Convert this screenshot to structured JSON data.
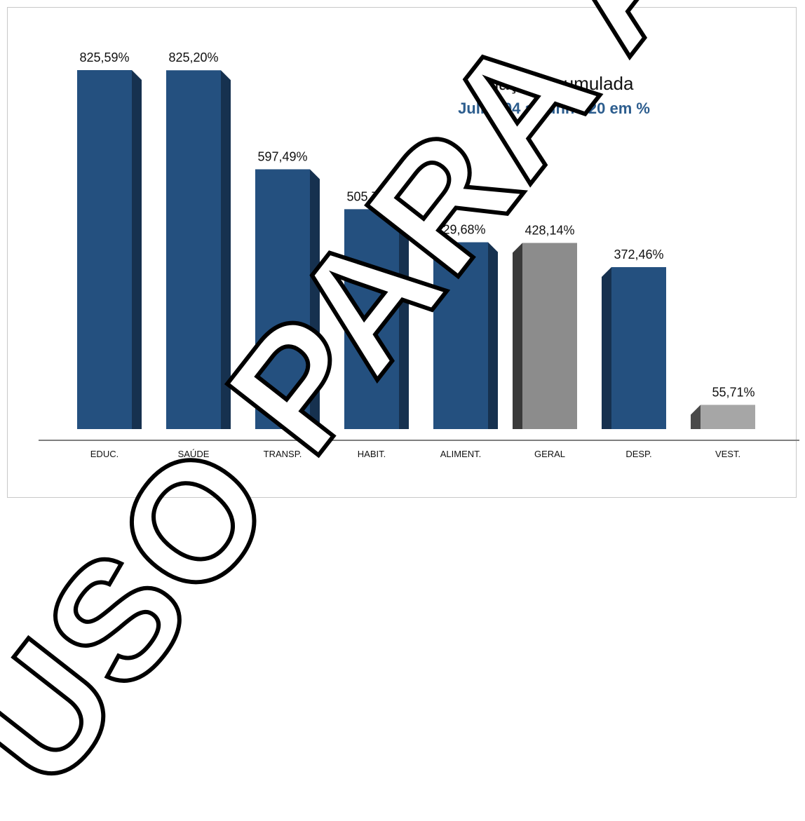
{
  "chart_data": {
    "type": "bar",
    "title": "Inflação Acumulada",
    "subtitle": "Julho/94 a Junho/20 em %",
    "categories": [
      "EDUC.",
      "SAÚDE",
      "TRANSP.",
      "HABIT.",
      "ALIMENT.",
      "GERAL",
      "DESP.",
      "VEST."
    ],
    "values": [
      825.59,
      825.2,
      597.49,
      505.72,
      429.68,
      428.14,
      372.46,
      55.71
    ],
    "value_labels": [
      "825,59%",
      "825,20%",
      "597,49%",
      "505,72%",
      "429,68%",
      "428,14%",
      "372,46%",
      "55,71%"
    ],
    "ylim": [
      0,
      825.59
    ],
    "grid": false,
    "legend": "none",
    "xlabel": "",
    "ylabel": ""
  },
  "watermark": {
    "text": "USO PARA ASS"
  },
  "colors": {
    "bar_front": "#24507f",
    "bar_side": "#16314f",
    "highlight_front": "#8c8c8c",
    "highlight_side": "#3a3a3a",
    "vest_front": "#a6a6a6",
    "vest_side": "#4a4a4a",
    "baseline": "#7f7f7f",
    "subtitle": "#2c5d8e"
  }
}
